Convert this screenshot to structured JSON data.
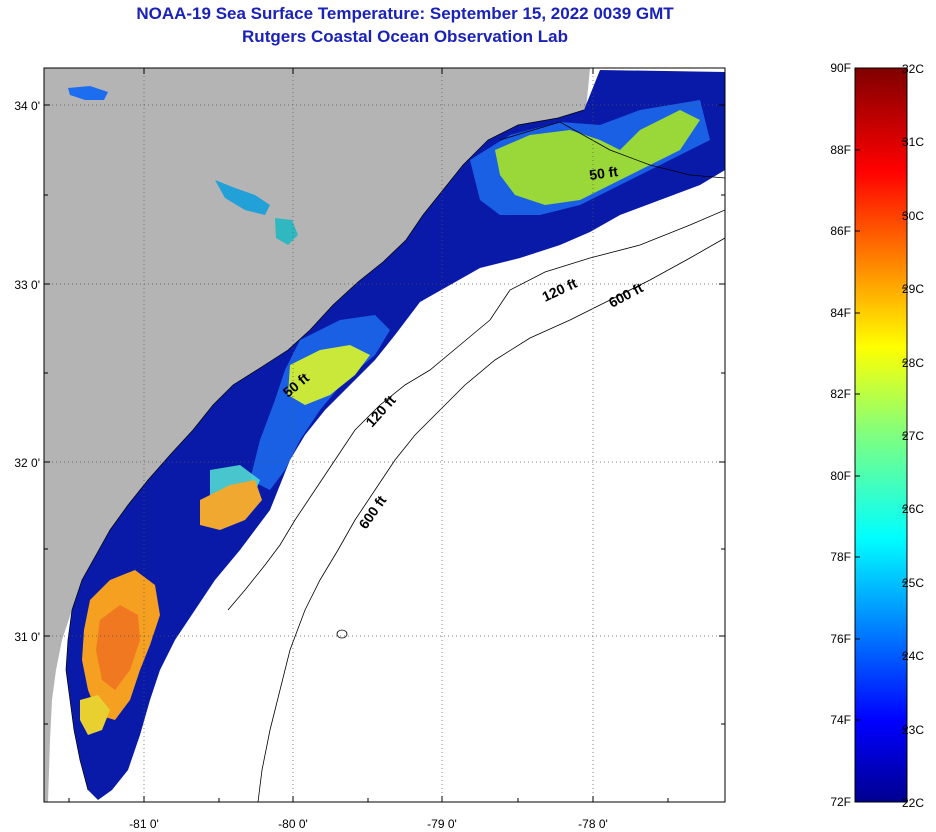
{
  "title": {
    "line1": "NOAA-19 Sea Surface Temperature:  September 15, 2022 0039 GMT",
    "line2": "Rutgers Coastal Ocean Observation Lab"
  },
  "map": {
    "lat_labels": [
      "34 0'",
      "33 0'",
      "32 0'",
      "31 0'"
    ],
    "lon_labels": [
      "-81 0'",
      "-80 0'",
      "-79 0'",
      "-78 0'"
    ],
    "contour_labels": {
      "c50a": "50 ft",
      "c50b": "50 ft",
      "c120a": "120 ft",
      "c120b": "120 ft",
      "c600a": "600 ft",
      "c600b": "600 ft"
    },
    "colors": {
      "land": "#b4b4b4",
      "ocean_nodata": "#ffffff",
      "gridline": "#555555"
    }
  },
  "colorbar": {
    "f_labels": [
      "90F",
      "88F",
      "86F",
      "84F",
      "82F",
      "80F",
      "78F",
      "76F",
      "74F",
      "72F"
    ],
    "c_labels": [
      "32C",
      "31C",
      "30C",
      "29C",
      "28C",
      "27C",
      "26C",
      "25C",
      "24C",
      "23C",
      "22C"
    ]
  }
}
